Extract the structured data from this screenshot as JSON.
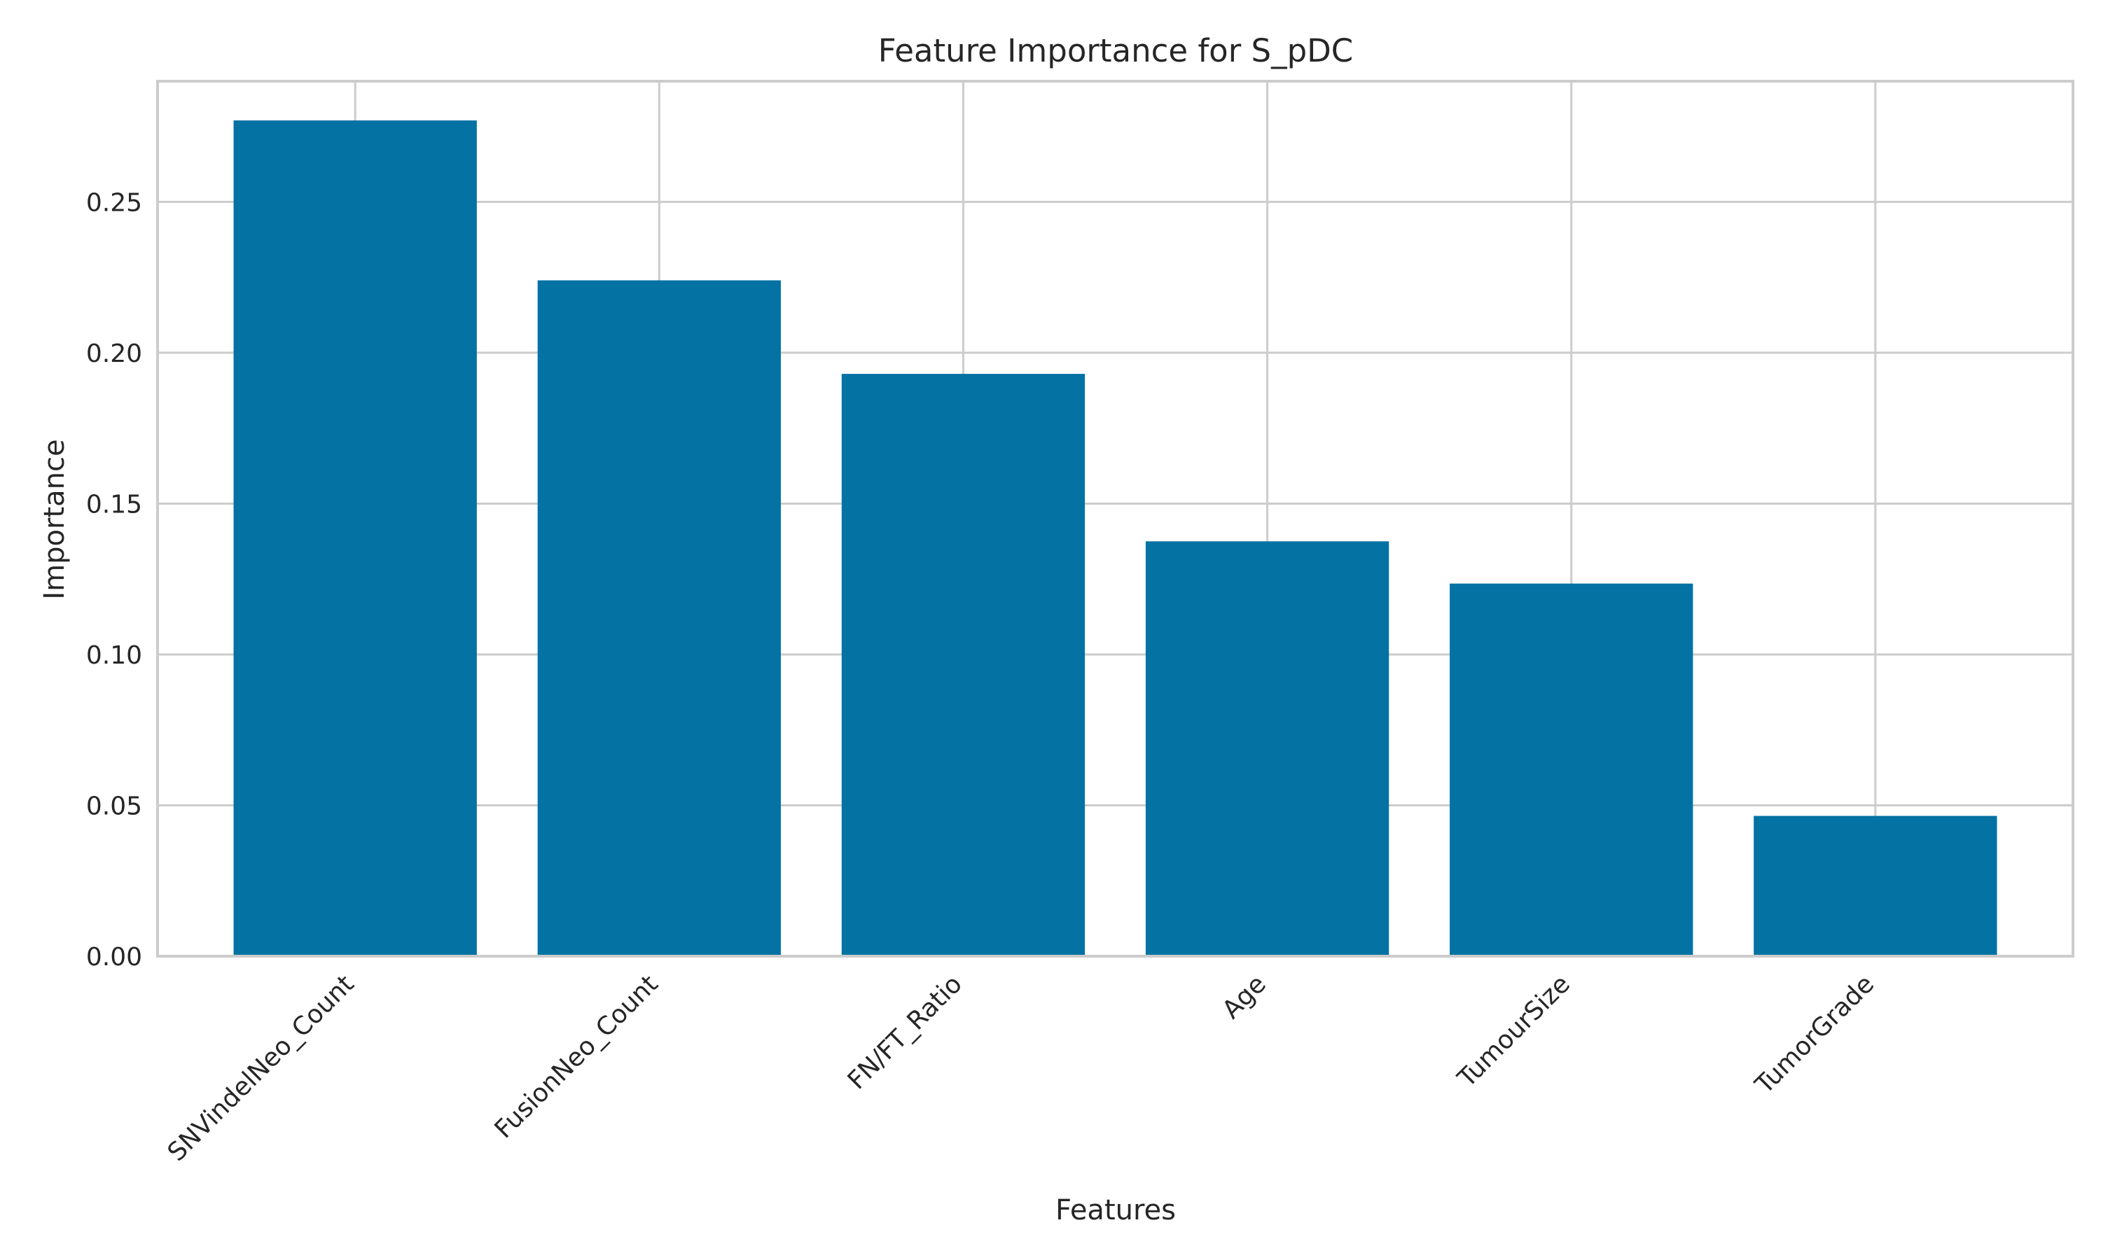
{
  "chart_data": {
    "type": "bar",
    "title": "Feature Importance for S_pDC",
    "xlabel": "Features",
    "ylabel": "Importance",
    "categories": [
      "SNVindelNeo_Count",
      "FusionNeo_Count",
      "FN/FT_Ratio",
      "Age",
      "TumourSize",
      "TumorGrade"
    ],
    "values": [
      0.277,
      0.224,
      0.193,
      0.1375,
      0.1235,
      0.0465
    ],
    "ylim": [
      0,
      0.29
    ],
    "yticks": [
      0.0,
      0.05,
      0.1,
      0.15,
      0.2,
      0.25
    ],
    "ytick_labels": [
      "0.00",
      "0.05",
      "0.10",
      "0.15",
      "0.20",
      "0.25"
    ],
    "bar_color": "#0472a3",
    "grid": true,
    "legend": "none"
  }
}
